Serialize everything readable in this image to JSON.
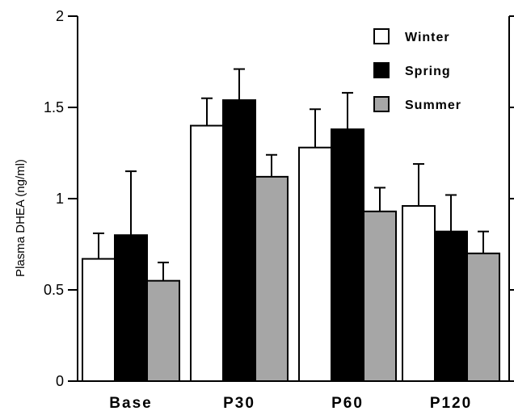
{
  "chart_data": {
    "type": "bar",
    "title": "",
    "xlabel": "",
    "ylabel": "Plasma DHEA  (ng/ml)",
    "ylim": [
      0,
      2
    ],
    "yticks": [
      "0",
      "0.5",
      "1",
      "1.5",
      "2"
    ],
    "ytick_values": [
      0,
      0.5,
      1,
      1.5,
      2
    ],
    "categories": [
      "Base",
      "P30",
      "P60",
      "P120"
    ],
    "legend_position": "top-right",
    "grid": false,
    "error_bars": "upper",
    "series": [
      {
        "name": "Winter",
        "color": "#ffffff",
        "values": [
          0.67,
          1.4,
          1.28,
          0.96
        ],
        "errors": [
          0.14,
          0.15,
          0.21,
          0.23
        ]
      },
      {
        "name": "Spring",
        "color": "#000000",
        "values": [
          0.8,
          1.54,
          1.38,
          0.82
        ],
        "errors": [
          0.35,
          0.17,
          0.2,
          0.2
        ]
      },
      {
        "name": "Summer",
        "color": "#a6a6a6",
        "values": [
          0.55,
          1.12,
          0.93,
          0.7
        ],
        "errors": [
          0.1,
          0.12,
          0.13,
          0.12
        ]
      }
    ]
  }
}
